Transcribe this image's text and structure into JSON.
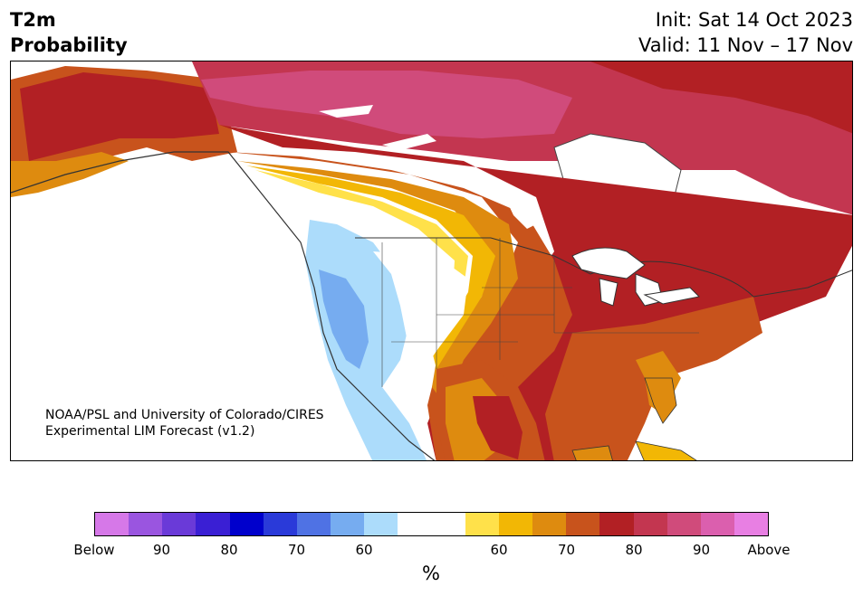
{
  "title": {
    "line1": "T2m",
    "line2": "Probability",
    "init": "Init: Sat 14 Oct 2023",
    "valid": "Valid: 11 Nov – 17 Nov"
  },
  "credit": {
    "line1": "NOAA/PSL and University of Colorado/CIRES",
    "line2": "Experimental LIM Forecast (v1.2)"
  },
  "colorbar": {
    "colors": [
      "#d678e8",
      "#9a55e0",
      "#6a3ad8",
      "#3a1fd4",
      "#0000cc",
      "#2a3ad9",
      "#4f72e4",
      "#76acf0",
      "#acdcfb",
      "#ffffff",
      "#ffffff",
      "#ffe14a",
      "#f2b705",
      "#de8b0f",
      "#c8531c",
      "#b22024",
      "#c33650",
      "#d04b7b",
      "#db5fae",
      "#e87fe3"
    ],
    "tick_labels": [
      "Below",
      "90",
      "80",
      "70",
      "60",
      "60",
      "70",
      "80",
      "90",
      "Above"
    ],
    "unit": "%"
  },
  "map_regions": {
    "alaska": "#b22024",
    "northern_canada": "#d04b7b",
    "central_canada": "#c33650",
    "great_lakes_east": "#b22024",
    "southeast": "#c8531c",
    "plains_transition": "#f2b705",
    "west_coast_below": "#76acf0",
    "interior_west": "#acdcfb",
    "mountain_neutral": "#ffffff"
  }
}
